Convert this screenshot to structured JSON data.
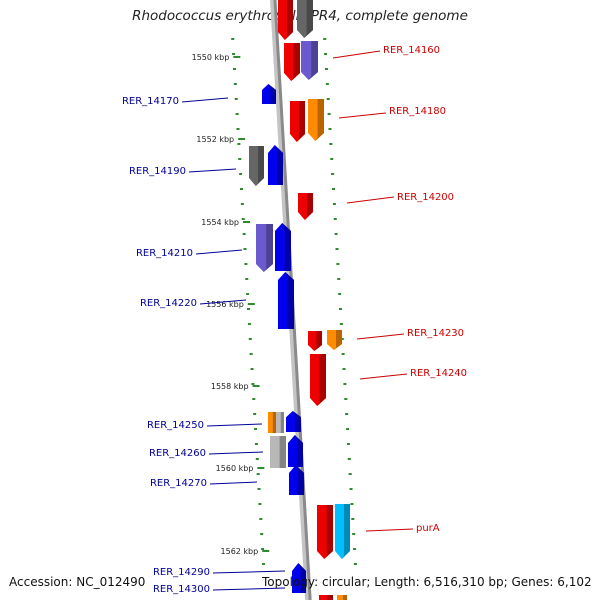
{
  "title": "Rhodococcus erythropolis PR4, complete genome",
  "footer": {
    "accession": "Accession: NC_012490",
    "summary": "Topology: circular; Length: 6,516,310 bp; Genes: 6,102"
  },
  "colors": {
    "backbone": "#8a8a8a",
    "tick": "#2e8b2e",
    "blue": "#0000ee",
    "red": "#ee0000",
    "orange": "#ff8c00",
    "purple": "#6a5acd",
    "gray": "#666666",
    "lightgray": "#b8b8b8",
    "cyan": "#00bfff",
    "label_forward": "#cc0000",
    "label_reverse": "#000099"
  },
  "kbp_labels": [
    "1550 kbp",
    "1552 kbp",
    "1554 kbp",
    "1556 kbp",
    "1558 kbp",
    "1560 kbp",
    "1562 kbp"
  ],
  "gene_labels": [
    {
      "text": "RER_14160",
      "strand": "forward"
    },
    {
      "text": "RER_14170",
      "strand": "reverse"
    },
    {
      "text": "RER_14180",
      "strand": "forward"
    },
    {
      "text": "RER_14190",
      "strand": "reverse"
    },
    {
      "text": "RER_14200",
      "strand": "forward"
    },
    {
      "text": "RER_14210",
      "strand": "reverse"
    },
    {
      "text": "RER_14220",
      "strand": "reverse"
    },
    {
      "text": "RER_14230",
      "strand": "forward"
    },
    {
      "text": "RER_14240",
      "strand": "forward"
    },
    {
      "text": "RER_14250",
      "strand": "reverse"
    },
    {
      "text": "RER_14260",
      "strand": "reverse"
    },
    {
      "text": "RER_14270",
      "strand": "reverse"
    },
    {
      "text": "purA",
      "strand": "forward"
    },
    {
      "text": "RER_14290",
      "strand": "reverse"
    },
    {
      "text": "RER_14300",
      "strand": "reverse"
    }
  ]
}
